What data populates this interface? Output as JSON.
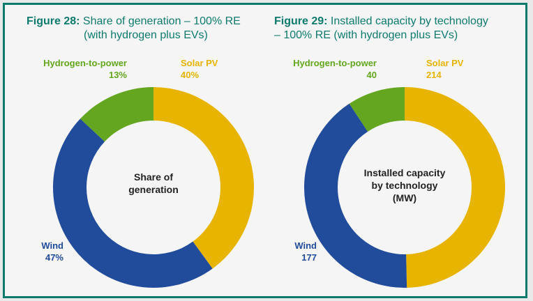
{
  "colors": {
    "solar": "#e7b400",
    "wind": "#214b9b",
    "hydrogen": "#64a620",
    "frame": "#0e7a6e"
  },
  "chart_data": [
    {
      "type": "pie",
      "figure_number": "Figure 28:",
      "title_line1": "Share of generation – 100% RE",
      "title_line2": "(with hydrogen plus EVs)",
      "center_label": [
        "Share of",
        "generation"
      ],
      "slices": [
        {
          "name": "Solar PV",
          "value": 40,
          "label": "40%",
          "color": "#e7b400"
        },
        {
          "name": "Wind",
          "value": 47,
          "label": "47%",
          "color": "#214b9b"
        },
        {
          "name": "Hydrogen-to-power",
          "value": 13,
          "label": "13%",
          "color": "#64a620"
        }
      ]
    },
    {
      "type": "pie",
      "figure_number": "Figure 29:",
      "title_line1": "Installed capacity by technology",
      "title_line2": "– 100% RE (with hydrogen plus EVs)",
      "center_label": [
        "Installed capacity",
        "by technology",
        "(MW)"
      ],
      "slices": [
        {
          "name": "Solar PV",
          "value": 214,
          "label": "214",
          "color": "#e7b400"
        },
        {
          "name": "Wind",
          "value": 177,
          "label": "177",
          "color": "#214b9b"
        },
        {
          "name": "Hydrogen-to-power",
          "value": 40,
          "label": "40",
          "color": "#64a620"
        }
      ]
    }
  ]
}
